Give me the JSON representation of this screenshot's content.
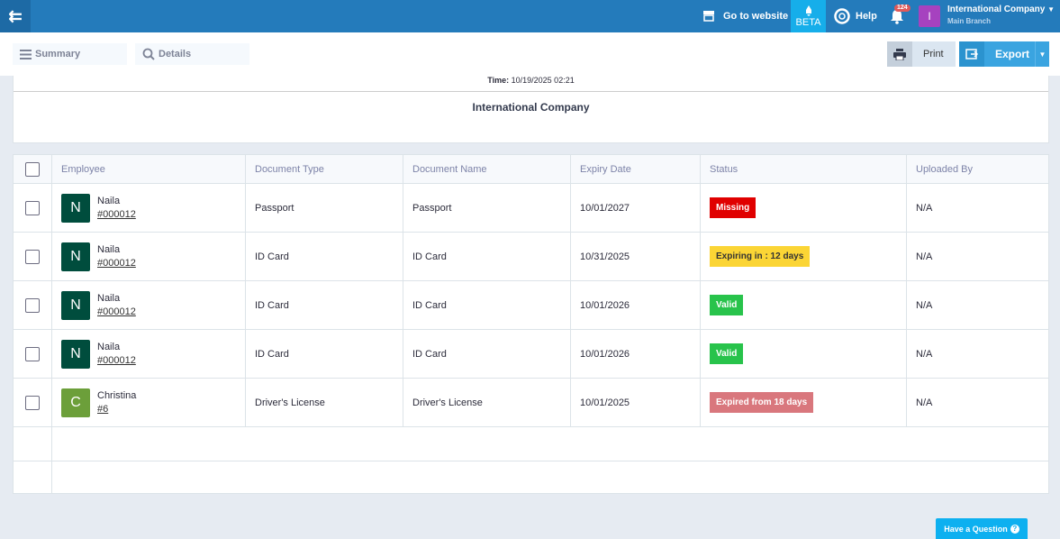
{
  "topbar": {
    "website": "Go to website",
    "beta": "BETA",
    "help": "Help",
    "notifications": "124",
    "company_initial": "I",
    "company": "International Company",
    "branch": "Main Branch"
  },
  "tabs": {
    "summary": "Summary",
    "details": "Details"
  },
  "actions": {
    "print": "Print",
    "export": "Export"
  },
  "report": {
    "time_label": "Time:",
    "time": "10/19/2025 02:21",
    "company": "International Company"
  },
  "table": {
    "headers": [
      "Employee",
      "Document Type",
      "Document Name",
      "Expiry Date",
      "Status",
      "Uploaded By"
    ],
    "rows": [
      {
        "initial": "N",
        "name": "Naila",
        "code": "#000012",
        "type": "Passport",
        "doc": "Passport",
        "expiry": "10/01/2027",
        "status": "Missing",
        "uploaded": "N/A"
      },
      {
        "initial": "N",
        "name": "Naila",
        "code": "#000012",
        "type": "ID Card",
        "doc": "ID Card",
        "expiry": "10/31/2025",
        "status": "Expiring in : 12 days",
        "uploaded": "N/A"
      },
      {
        "initial": "N",
        "name": "Naila",
        "code": "#000012",
        "type": "ID Card",
        "doc": "ID Card",
        "expiry": "10/01/2026",
        "status": "Valid",
        "uploaded": "N/A"
      },
      {
        "initial": "N",
        "name": "Naila",
        "code": "#000012",
        "type": "ID Card",
        "doc": "ID Card",
        "expiry": "10/01/2026",
        "status": "Valid",
        "uploaded": "N/A"
      },
      {
        "initial": "C",
        "name": "Christina",
        "code": "#6",
        "type": "Driver's License",
        "doc": "Driver's License",
        "expiry": "10/01/2025",
        "status": "Expired from 18 days",
        "uploaded": "N/A"
      }
    ]
  },
  "colors": {
    "missing": "#e00000",
    "expiring": "#fbd535",
    "valid": "#28c34b",
    "expired": "#d9777d",
    "avatar_n": "#004d3d",
    "avatar_c": "#6c9f3a"
  },
  "help_button": "Have a Question"
}
